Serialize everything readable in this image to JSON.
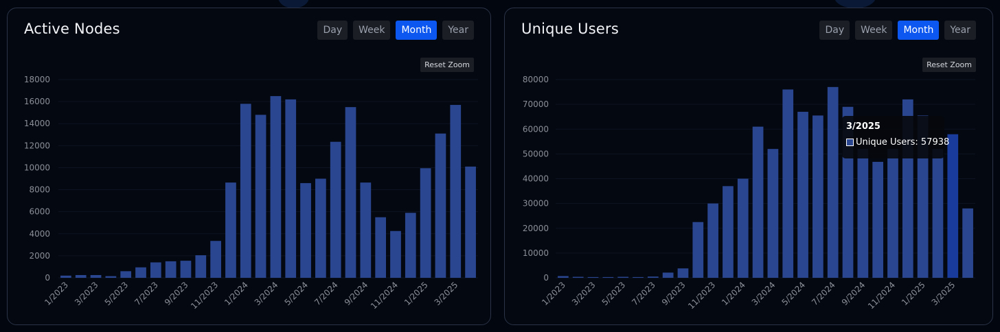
{
  "colors": {
    "bar": "#2a4691",
    "bar_highlight": "#183b9c",
    "active_button": "#0b57f0",
    "card_border": "#2a3347"
  },
  "charts": [
    {
      "title": "Active Nodes",
      "range_buttons": [
        "Day",
        "Week",
        "Month",
        "Year"
      ],
      "active_range": "Month",
      "reset_label": "Reset Zoom",
      "yticks": [
        "0",
        "2000",
        "4000",
        "6000",
        "8000",
        "10000",
        "12000",
        "14000",
        "16000",
        "18000"
      ],
      "xtick_labels": [
        "1/2023",
        "3/2023",
        "5/2023",
        "7/2023",
        "9/2023",
        "11/2023",
        "1/2024",
        "3/2024",
        "5/2024",
        "7/2024",
        "9/2024",
        "11/2024",
        "1/2025",
        "3/2025"
      ]
    },
    {
      "title": "Unique Users",
      "range_buttons": [
        "Day",
        "Week",
        "Month",
        "Year"
      ],
      "active_range": "Month",
      "reset_label": "Reset Zoom",
      "yticks": [
        "0",
        "10000",
        "20000",
        "30000",
        "40000",
        "50000",
        "60000",
        "70000",
        "80000"
      ],
      "xtick_labels": [
        "1/2023",
        "3/2023",
        "5/2023",
        "7/2023",
        "9/2023",
        "11/2023",
        "1/2024",
        "3/2024",
        "5/2024",
        "7/2024",
        "9/2024",
        "11/2024",
        "1/2025",
        "3/2025"
      ],
      "tooltip": {
        "title": "3/2025",
        "series_label": "Unique Users: 57938"
      }
    }
  ],
  "chart_data": [
    {
      "type": "bar",
      "title": "Active Nodes",
      "categories": [
        "1/2023",
        "2/2023",
        "3/2023",
        "4/2023",
        "5/2023",
        "6/2023",
        "7/2023",
        "8/2023",
        "9/2023",
        "10/2023",
        "11/2023",
        "12/2023",
        "1/2024",
        "2/2024",
        "3/2024",
        "4/2024",
        "5/2024",
        "6/2024",
        "7/2024",
        "8/2024",
        "9/2024",
        "10/2024",
        "11/2024",
        "12/2024",
        "1/2025",
        "2/2025",
        "3/2025",
        "4/2025"
      ],
      "values": [
        200,
        250,
        250,
        150,
        600,
        950,
        1400,
        1500,
        1550,
        2050,
        3350,
        8650,
        15800,
        14800,
        16500,
        16200,
        8600,
        9000,
        12350,
        15500,
        8650,
        5500,
        4250,
        5900,
        9950,
        13100,
        15700,
        10100
      ],
      "ylim": [
        0,
        18000
      ],
      "grid": true
    },
    {
      "type": "bar",
      "title": "Unique Users",
      "categories": [
        "1/2023",
        "2/2023",
        "3/2023",
        "4/2023",
        "5/2023",
        "6/2023",
        "7/2023",
        "8/2023",
        "9/2023",
        "10/2023",
        "11/2023",
        "12/2023",
        "1/2024",
        "2/2024",
        "3/2024",
        "4/2024",
        "5/2024",
        "6/2024",
        "7/2024",
        "8/2024",
        "9/2024",
        "10/2024",
        "11/2024",
        "12/2024",
        "1/2025",
        "2/2025",
        "3/2025",
        "4/2025"
      ],
      "series": [
        {
          "name": "Unique Users",
          "values": [
            700,
            400,
            300,
            300,
            400,
            300,
            500,
            2100,
            3800,
            22500,
            30000,
            37000,
            40000,
            61000,
            52000,
            76000,
            67000,
            65500,
            77000,
            69000,
            52000,
            46800,
            52000,
            72000,
            65500,
            52000,
            57938,
            28000
          ]
        }
      ],
      "ylim": [
        0,
        80000
      ],
      "highlight_category": "3/2025",
      "grid": true
    }
  ]
}
